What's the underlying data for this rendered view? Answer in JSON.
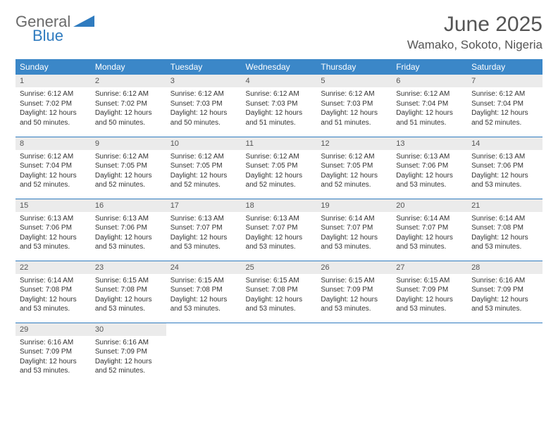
{
  "brand": {
    "part1": "General",
    "part2": "Blue"
  },
  "title": "June 2025",
  "location": "Wamako, Sokoto, Nigeria",
  "colors": {
    "header_bg": "#3b87c8",
    "header_text": "#ffffff",
    "daynum_bg": "#ebebeb",
    "rule": "#2f7bbf",
    "title_color": "#555555",
    "body_text": "#333333",
    "logo_gray": "#6a6a6a",
    "logo_blue": "#2f7bbf"
  },
  "weekdays": [
    "Sunday",
    "Monday",
    "Tuesday",
    "Wednesday",
    "Thursday",
    "Friday",
    "Saturday"
  ],
  "weeks": [
    [
      {
        "n": "1",
        "sr": "Sunrise: 6:12 AM",
        "ss": "Sunset: 7:02 PM",
        "dl": "Daylight: 12 hours and 50 minutes."
      },
      {
        "n": "2",
        "sr": "Sunrise: 6:12 AM",
        "ss": "Sunset: 7:02 PM",
        "dl": "Daylight: 12 hours and 50 minutes."
      },
      {
        "n": "3",
        "sr": "Sunrise: 6:12 AM",
        "ss": "Sunset: 7:03 PM",
        "dl": "Daylight: 12 hours and 50 minutes."
      },
      {
        "n": "4",
        "sr": "Sunrise: 6:12 AM",
        "ss": "Sunset: 7:03 PM",
        "dl": "Daylight: 12 hours and 51 minutes."
      },
      {
        "n": "5",
        "sr": "Sunrise: 6:12 AM",
        "ss": "Sunset: 7:03 PM",
        "dl": "Daylight: 12 hours and 51 minutes."
      },
      {
        "n": "6",
        "sr": "Sunrise: 6:12 AM",
        "ss": "Sunset: 7:04 PM",
        "dl": "Daylight: 12 hours and 51 minutes."
      },
      {
        "n": "7",
        "sr": "Sunrise: 6:12 AM",
        "ss": "Sunset: 7:04 PM",
        "dl": "Daylight: 12 hours and 52 minutes."
      }
    ],
    [
      {
        "n": "8",
        "sr": "Sunrise: 6:12 AM",
        "ss": "Sunset: 7:04 PM",
        "dl": "Daylight: 12 hours and 52 minutes."
      },
      {
        "n": "9",
        "sr": "Sunrise: 6:12 AM",
        "ss": "Sunset: 7:05 PM",
        "dl": "Daylight: 12 hours and 52 minutes."
      },
      {
        "n": "10",
        "sr": "Sunrise: 6:12 AM",
        "ss": "Sunset: 7:05 PM",
        "dl": "Daylight: 12 hours and 52 minutes."
      },
      {
        "n": "11",
        "sr": "Sunrise: 6:12 AM",
        "ss": "Sunset: 7:05 PM",
        "dl": "Daylight: 12 hours and 52 minutes."
      },
      {
        "n": "12",
        "sr": "Sunrise: 6:12 AM",
        "ss": "Sunset: 7:05 PM",
        "dl": "Daylight: 12 hours and 52 minutes."
      },
      {
        "n": "13",
        "sr": "Sunrise: 6:13 AM",
        "ss": "Sunset: 7:06 PM",
        "dl": "Daylight: 12 hours and 53 minutes."
      },
      {
        "n": "14",
        "sr": "Sunrise: 6:13 AM",
        "ss": "Sunset: 7:06 PM",
        "dl": "Daylight: 12 hours and 53 minutes."
      }
    ],
    [
      {
        "n": "15",
        "sr": "Sunrise: 6:13 AM",
        "ss": "Sunset: 7:06 PM",
        "dl": "Daylight: 12 hours and 53 minutes."
      },
      {
        "n": "16",
        "sr": "Sunrise: 6:13 AM",
        "ss": "Sunset: 7:06 PM",
        "dl": "Daylight: 12 hours and 53 minutes."
      },
      {
        "n": "17",
        "sr": "Sunrise: 6:13 AM",
        "ss": "Sunset: 7:07 PM",
        "dl": "Daylight: 12 hours and 53 minutes."
      },
      {
        "n": "18",
        "sr": "Sunrise: 6:13 AM",
        "ss": "Sunset: 7:07 PM",
        "dl": "Daylight: 12 hours and 53 minutes."
      },
      {
        "n": "19",
        "sr": "Sunrise: 6:14 AM",
        "ss": "Sunset: 7:07 PM",
        "dl": "Daylight: 12 hours and 53 minutes."
      },
      {
        "n": "20",
        "sr": "Sunrise: 6:14 AM",
        "ss": "Sunset: 7:07 PM",
        "dl": "Daylight: 12 hours and 53 minutes."
      },
      {
        "n": "21",
        "sr": "Sunrise: 6:14 AM",
        "ss": "Sunset: 7:08 PM",
        "dl": "Daylight: 12 hours and 53 minutes."
      }
    ],
    [
      {
        "n": "22",
        "sr": "Sunrise: 6:14 AM",
        "ss": "Sunset: 7:08 PM",
        "dl": "Daylight: 12 hours and 53 minutes."
      },
      {
        "n": "23",
        "sr": "Sunrise: 6:15 AM",
        "ss": "Sunset: 7:08 PM",
        "dl": "Daylight: 12 hours and 53 minutes."
      },
      {
        "n": "24",
        "sr": "Sunrise: 6:15 AM",
        "ss": "Sunset: 7:08 PM",
        "dl": "Daylight: 12 hours and 53 minutes."
      },
      {
        "n": "25",
        "sr": "Sunrise: 6:15 AM",
        "ss": "Sunset: 7:08 PM",
        "dl": "Daylight: 12 hours and 53 minutes."
      },
      {
        "n": "26",
        "sr": "Sunrise: 6:15 AM",
        "ss": "Sunset: 7:09 PM",
        "dl": "Daylight: 12 hours and 53 minutes."
      },
      {
        "n": "27",
        "sr": "Sunrise: 6:15 AM",
        "ss": "Sunset: 7:09 PM",
        "dl": "Daylight: 12 hours and 53 minutes."
      },
      {
        "n": "28",
        "sr": "Sunrise: 6:16 AM",
        "ss": "Sunset: 7:09 PM",
        "dl": "Daylight: 12 hours and 53 minutes."
      }
    ],
    [
      {
        "n": "29",
        "sr": "Sunrise: 6:16 AM",
        "ss": "Sunset: 7:09 PM",
        "dl": "Daylight: 12 hours and 53 minutes."
      },
      {
        "n": "30",
        "sr": "Sunrise: 6:16 AM",
        "ss": "Sunset: 7:09 PM",
        "dl": "Daylight: 12 hours and 52 minutes."
      },
      null,
      null,
      null,
      null,
      null
    ]
  ]
}
